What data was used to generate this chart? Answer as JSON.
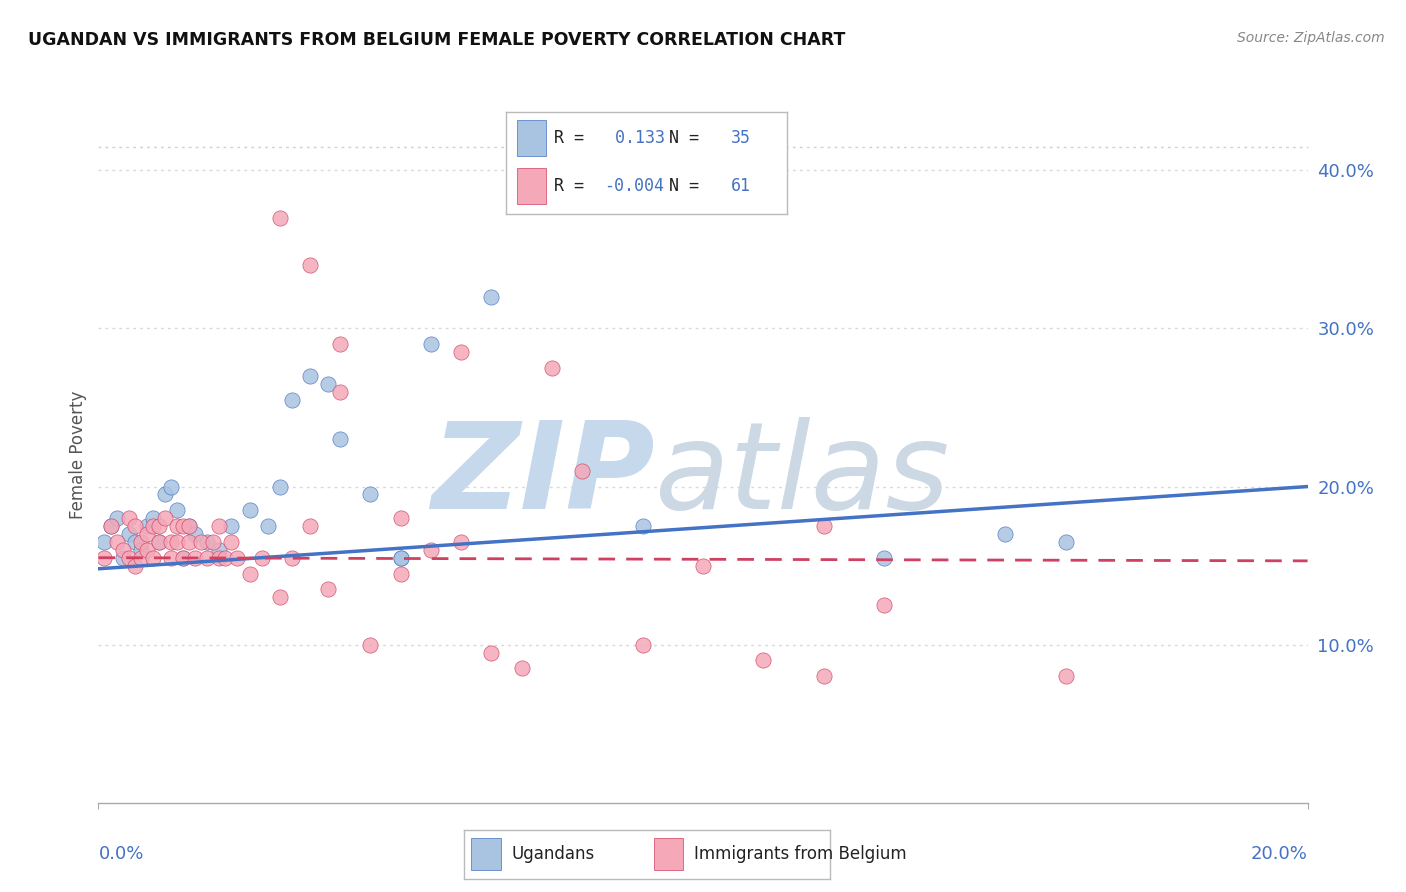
{
  "title": "UGANDAN VS IMMIGRANTS FROM BELGIUM FEMALE POVERTY CORRELATION CHART",
  "source": "Source: ZipAtlas.com",
  "ylabel": "Female Poverty",
  "y_ticks": [
    0.1,
    0.2,
    0.3,
    0.4
  ],
  "y_tick_labels": [
    "10.0%",
    "20.0%",
    "30.0%",
    "40.0%"
  ],
  "xmin": 0.0,
  "xmax": 0.2,
  "ymin": 0.0,
  "ymax": 0.44,
  "legend_R1": " 0.133",
  "legend_N1": "35",
  "legend_R2": "-0.004",
  "legend_N2": "61",
  "label1": "Ugandans",
  "label2": "Immigrants from Belgium",
  "color1": "#a8c4e0",
  "color2": "#f4a8b8",
  "line_color1": "#4472c4",
  "line_color2": "#d04060",
  "blue_trend_start": 0.148,
  "blue_trend_end": 0.2,
  "pink_trend_start": 0.155,
  "pink_trend_end": 0.153,
  "blue_scatter_x": [
    0.001,
    0.002,
    0.003,
    0.004,
    0.005,
    0.006,
    0.007,
    0.008,
    0.009,
    0.01,
    0.011,
    0.012,
    0.013,
    0.014,
    0.015,
    0.016,
    0.018,
    0.02,
    0.022,
    0.025,
    0.028,
    0.03,
    0.032,
    0.035,
    0.038,
    0.04,
    0.045,
    0.05,
    0.055,
    0.065,
    0.09,
    0.13,
    0.15,
    0.16,
    0.05
  ],
  "blue_scatter_y": [
    0.165,
    0.175,
    0.18,
    0.155,
    0.17,
    0.165,
    0.16,
    0.175,
    0.18,
    0.165,
    0.195,
    0.2,
    0.185,
    0.155,
    0.175,
    0.17,
    0.165,
    0.16,
    0.175,
    0.185,
    0.175,
    0.2,
    0.255,
    0.27,
    0.265,
    0.23,
    0.195,
    0.155,
    0.29,
    0.32,
    0.175,
    0.155,
    0.17,
    0.165,
    0.155
  ],
  "pink_scatter_x": [
    0.001,
    0.002,
    0.003,
    0.004,
    0.005,
    0.005,
    0.006,
    0.006,
    0.007,
    0.007,
    0.008,
    0.008,
    0.009,
    0.009,
    0.01,
    0.01,
    0.011,
    0.012,
    0.012,
    0.013,
    0.013,
    0.014,
    0.014,
    0.015,
    0.015,
    0.016,
    0.017,
    0.018,
    0.019,
    0.02,
    0.02,
    0.021,
    0.022,
    0.023,
    0.025,
    0.027,
    0.03,
    0.032,
    0.035,
    0.038,
    0.04,
    0.045,
    0.05,
    0.055,
    0.06,
    0.065,
    0.07,
    0.075,
    0.08,
    0.09,
    0.1,
    0.11,
    0.12,
    0.13,
    0.16,
    0.03,
    0.035,
    0.04,
    0.05,
    0.06,
    0.12
  ],
  "pink_scatter_y": [
    0.155,
    0.175,
    0.165,
    0.16,
    0.18,
    0.155,
    0.175,
    0.15,
    0.165,
    0.155,
    0.17,
    0.16,
    0.175,
    0.155,
    0.165,
    0.175,
    0.18,
    0.165,
    0.155,
    0.175,
    0.165,
    0.155,
    0.175,
    0.165,
    0.175,
    0.155,
    0.165,
    0.155,
    0.165,
    0.155,
    0.175,
    0.155,
    0.165,
    0.155,
    0.145,
    0.155,
    0.13,
    0.155,
    0.175,
    0.135,
    0.29,
    0.1,
    0.145,
    0.16,
    0.285,
    0.095,
    0.085,
    0.275,
    0.21,
    0.1,
    0.15,
    0.09,
    0.08,
    0.125,
    0.08,
    0.37,
    0.34,
    0.26,
    0.18,
    0.165,
    0.175
  ],
  "background_color": "#ffffff",
  "grid_color": "#d8d8d8",
  "top_dotted_color": "#d0d0d0"
}
